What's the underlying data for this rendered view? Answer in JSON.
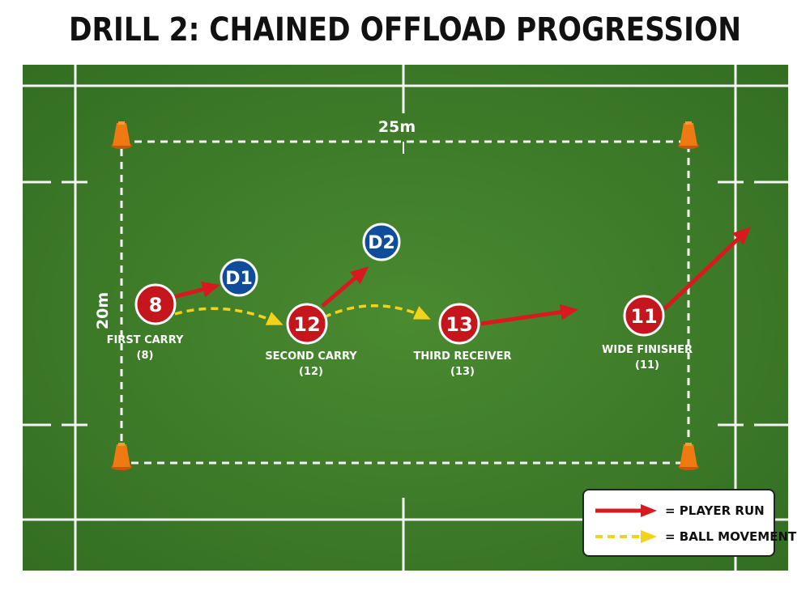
{
  "title": "DRILL 2: CHAINED OFFLOAD PROGRESSION",
  "dimensions": {
    "width_label": "25m",
    "height_label": "20m"
  },
  "players": {
    "attackers": [
      {
        "id": "p8",
        "number": "8",
        "label": "FIRST CARRY",
        "sub": "(8)"
      },
      {
        "id": "p12",
        "number": "12",
        "label": "SECOND CARRY",
        "sub": "(12)"
      },
      {
        "id": "p13",
        "number": "13",
        "label": "THIRD RECEIVER",
        "sub": "(13)"
      },
      {
        "id": "p11",
        "number": "11",
        "label": "WIDE FINISHER",
        "sub": "(11)"
      }
    ],
    "defenders": [
      {
        "id": "d1",
        "number": "D1"
      },
      {
        "id": "d2",
        "number": "D2"
      }
    ]
  },
  "legend": {
    "player_run": "= PLAYER RUN",
    "ball_movement": "= BALL MOVEMENT"
  },
  "colors": {
    "pitch": "#3f7d2a",
    "attacker": "#c4161c",
    "defender": "#0f4c9c",
    "run_arrow": "#d8191f",
    "ball_arrow": "#f2d21b",
    "cone": "#f07a12"
  }
}
